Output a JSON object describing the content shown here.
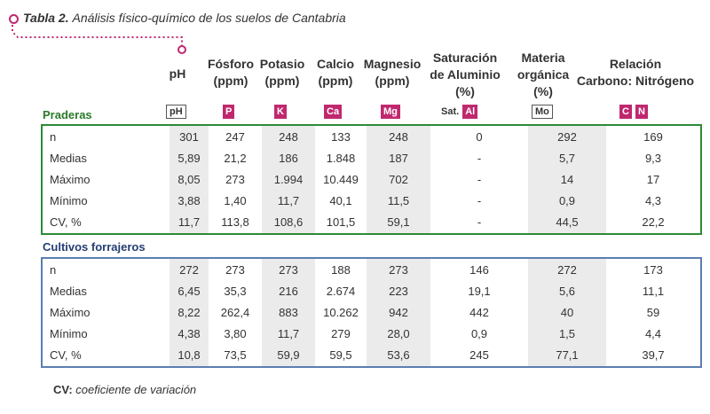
{
  "title": {
    "number": "Tabla 2.",
    "text": "Análisis físico-químico de los suelos de Cantabria"
  },
  "columns": [
    {
      "key": "ph",
      "lines": [
        "pH"
      ],
      "badges": [
        "pH"
      ],
      "badge_style": "outline"
    },
    {
      "key": "p",
      "lines": [
        "Fósforo",
        "(ppm)"
      ],
      "badges": [
        "P"
      ],
      "badge_style": "solid"
    },
    {
      "key": "k",
      "lines": [
        "Potasio",
        "(ppm)"
      ],
      "badges": [
        "K"
      ],
      "badge_style": "solid"
    },
    {
      "key": "ca",
      "lines": [
        "Calcio",
        "(ppm)"
      ],
      "badges": [
        "Ca"
      ],
      "badge_style": "solid"
    },
    {
      "key": "mg",
      "lines": [
        "Magnesio",
        "(ppm)"
      ],
      "badges": [
        "Mg"
      ],
      "badge_style": "solid"
    },
    {
      "key": "al",
      "lines": [
        "Saturación",
        "de Aluminio",
        "(%)"
      ],
      "prefix": "Sat.",
      "badges": [
        "Al"
      ],
      "badge_style": "solid"
    },
    {
      "key": "mo",
      "lines": [
        "Materia",
        "orgánica",
        "(%)"
      ],
      "badges": [
        "Mo"
      ],
      "badge_style": "outline"
    },
    {
      "key": "cn",
      "lines": [
        "Relación",
        "Carbono: Nitrógeno"
      ],
      "badges": [
        "C",
        "N"
      ],
      "badge_style": "solid"
    }
  ],
  "sections": [
    {
      "label": "Praderas",
      "rows": [
        {
          "label": "n",
          "values": [
            "301",
            "247",
            "248",
            "133",
            "248",
            "0",
            "292",
            "169"
          ]
        },
        {
          "label": "Medias",
          "values": [
            "5,89",
            "21,2",
            "186",
            "1.848",
            "187",
            "-",
            "5,7",
            "9,3"
          ]
        },
        {
          "label": "Máximo",
          "values": [
            "8,05",
            "273",
            "1.994",
            "10.449",
            "702",
            "-",
            "14",
            "17"
          ]
        },
        {
          "label": "Mínimo",
          "values": [
            "3,88",
            "1,40",
            "11,7",
            "40,1",
            "11,5",
            "-",
            "0,9",
            "4,3"
          ]
        },
        {
          "label": "CV, %",
          "values": [
            "11,7",
            "113,8",
            "108,6",
            "101,5",
            "59,1",
            "-",
            "44,5",
            "22,2"
          ]
        }
      ]
    },
    {
      "label": "Cultivos forrajeros",
      "rows": [
        {
          "label": "n",
          "values": [
            "272",
            "273",
            "273",
            "188",
            "273",
            "146",
            "272",
            "173"
          ]
        },
        {
          "label": "Medias",
          "values": [
            "6,45",
            "35,3",
            "216",
            "2.674",
            "223",
            "19,1",
            "5,6",
            "11,1"
          ]
        },
        {
          "label": "Máximo",
          "values": [
            "8,22",
            "262,4",
            "883",
            "10.262",
            "942",
            "442",
            "40",
            "59"
          ]
        },
        {
          "label": "Mínimo",
          "values": [
            "4,38",
            "3,80",
            "11,7",
            "279",
            "28,0",
            "0,9",
            "1,5",
            "4,4"
          ]
        },
        {
          "label": "CV, %",
          "values": [
            "10,8",
            "73,5",
            "59,9",
            "59,5",
            "53,6",
            "245",
            "77,1",
            "39,7"
          ]
        }
      ]
    }
  ],
  "footnote": {
    "abbr": "CV:",
    "text": "coeficiente de variación"
  },
  "colors": {
    "accent": "#c0286e",
    "praderas": "#2e8b35",
    "cultivos": "#5b7fb0",
    "cultivos_label": "#243d73",
    "shade": "#ebebeb"
  }
}
